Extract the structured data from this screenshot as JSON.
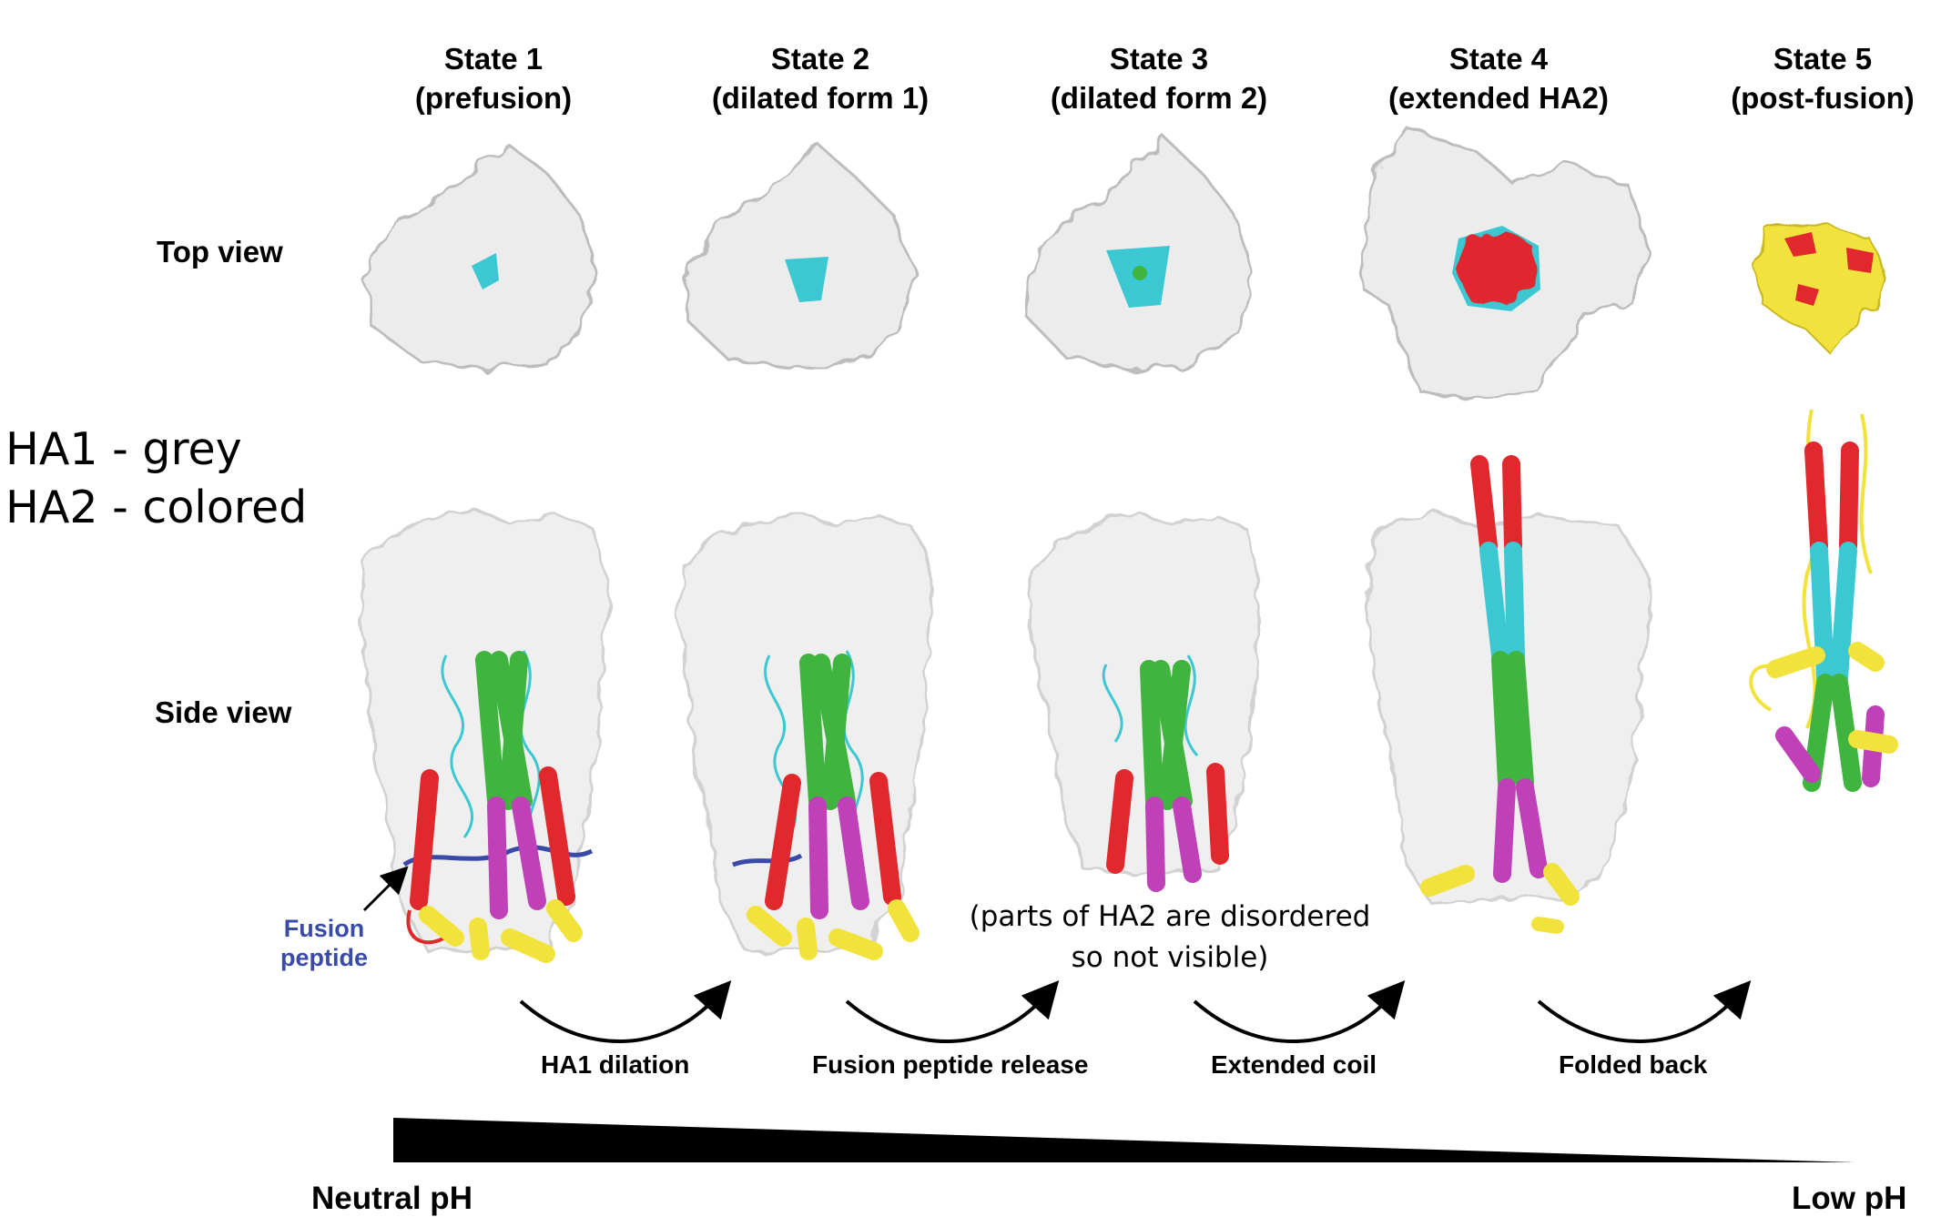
{
  "states": [
    {
      "name": "State 1",
      "subtitle": "(prefusion)"
    },
    {
      "name": "State 2",
      "subtitle": "(dilated form 1)"
    },
    {
      "name": "State 3",
      "subtitle": "(dilated form 2)"
    },
    {
      "name": "State 4",
      "subtitle": "(extended HA2)"
    },
    {
      "name": "State 5",
      "subtitle": "(post-fusion)"
    }
  ],
  "rows": {
    "top": "Top view",
    "side": "Side view"
  },
  "legend": {
    "ha1": "HA1 - grey",
    "ha2": "HA2 - colored"
  },
  "fusion_peptide": {
    "line1": "Fusion",
    "line2": "peptide"
  },
  "note": {
    "line1": "(parts of HA2 are disordered",
    "line2": "so not visible)"
  },
  "transitions": [
    "HA1 dilation",
    "Fusion peptide release",
    "Extended coil",
    "Folded back"
  ],
  "ph": {
    "left": "Neutral pH",
    "right": "Low pH"
  },
  "colors": {
    "ha1": "#e9e9e9",
    "cyan": "#3cc8d2",
    "red": "#e0282d",
    "green": "#3fb43f",
    "magenta": "#c040b8",
    "yellow": "#f2e23c",
    "blue": "#3a4aa8"
  }
}
